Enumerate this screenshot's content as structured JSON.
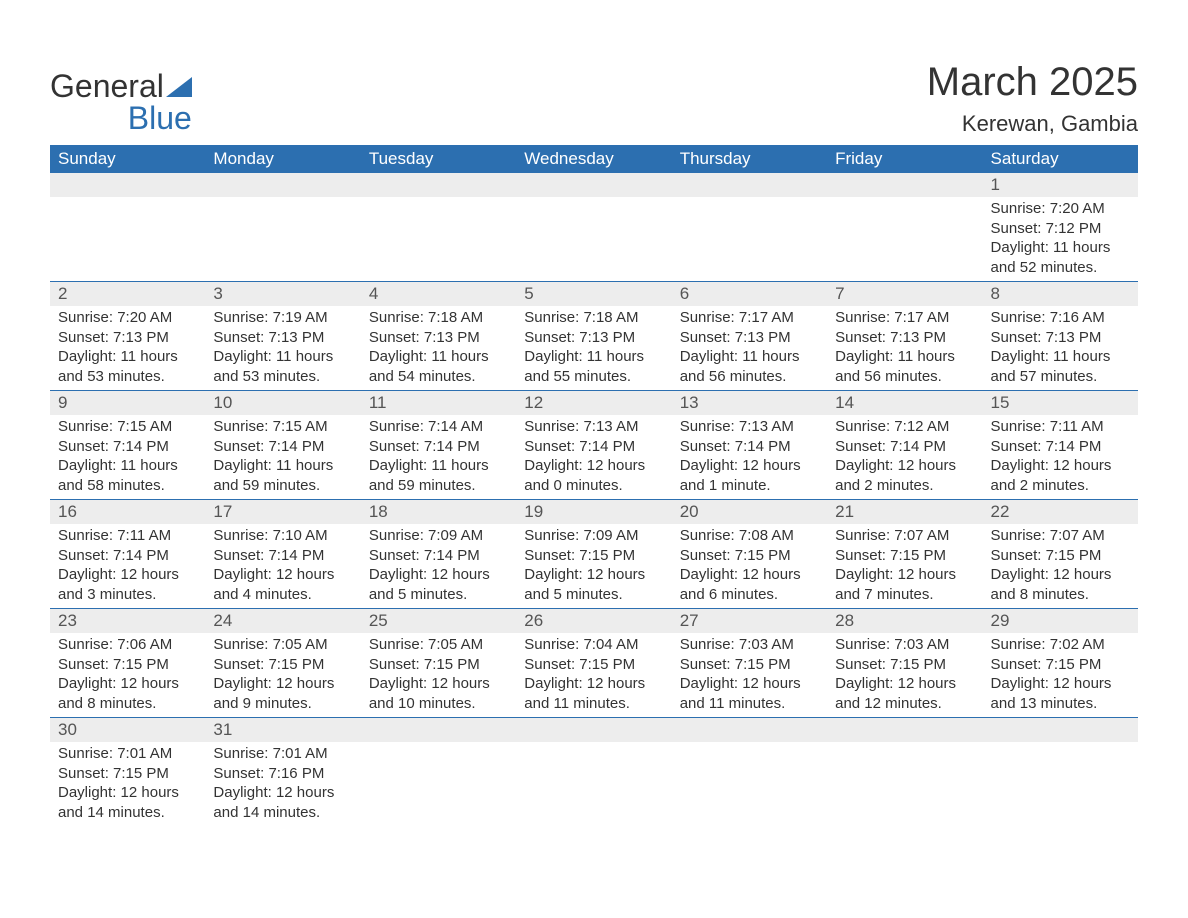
{
  "brand": {
    "line1": "General",
    "line2": "Blue"
  },
  "title": "March 2025",
  "location": "Kerewan, Gambia",
  "colors": {
    "header_bg": "#2c6fb0",
    "header_fg": "#ffffff",
    "daynum_bg": "#ededed",
    "text": "#333333",
    "border": "#2c6fb0"
  },
  "weekdays": [
    "Sunday",
    "Monday",
    "Tuesday",
    "Wednesday",
    "Thursday",
    "Friday",
    "Saturday"
  ],
  "weeks": [
    [
      null,
      null,
      null,
      null,
      null,
      null,
      {
        "n": "1",
        "sunrise": "Sunrise: 7:20 AM",
        "sunset": "Sunset: 7:12 PM",
        "day": "Daylight: 11 hours and 52 minutes."
      }
    ],
    [
      {
        "n": "2",
        "sunrise": "Sunrise: 7:20 AM",
        "sunset": "Sunset: 7:13 PM",
        "day": "Daylight: 11 hours and 53 minutes."
      },
      {
        "n": "3",
        "sunrise": "Sunrise: 7:19 AM",
        "sunset": "Sunset: 7:13 PM",
        "day": "Daylight: 11 hours and 53 minutes."
      },
      {
        "n": "4",
        "sunrise": "Sunrise: 7:18 AM",
        "sunset": "Sunset: 7:13 PM",
        "day": "Daylight: 11 hours and 54 minutes."
      },
      {
        "n": "5",
        "sunrise": "Sunrise: 7:18 AM",
        "sunset": "Sunset: 7:13 PM",
        "day": "Daylight: 11 hours and 55 minutes."
      },
      {
        "n": "6",
        "sunrise": "Sunrise: 7:17 AM",
        "sunset": "Sunset: 7:13 PM",
        "day": "Daylight: 11 hours and 56 minutes."
      },
      {
        "n": "7",
        "sunrise": "Sunrise: 7:17 AM",
        "sunset": "Sunset: 7:13 PM",
        "day": "Daylight: 11 hours and 56 minutes."
      },
      {
        "n": "8",
        "sunrise": "Sunrise: 7:16 AM",
        "sunset": "Sunset: 7:13 PM",
        "day": "Daylight: 11 hours and 57 minutes."
      }
    ],
    [
      {
        "n": "9",
        "sunrise": "Sunrise: 7:15 AM",
        "sunset": "Sunset: 7:14 PM",
        "day": "Daylight: 11 hours and 58 minutes."
      },
      {
        "n": "10",
        "sunrise": "Sunrise: 7:15 AM",
        "sunset": "Sunset: 7:14 PM",
        "day": "Daylight: 11 hours and 59 minutes."
      },
      {
        "n": "11",
        "sunrise": "Sunrise: 7:14 AM",
        "sunset": "Sunset: 7:14 PM",
        "day": "Daylight: 11 hours and 59 minutes."
      },
      {
        "n": "12",
        "sunrise": "Sunrise: 7:13 AM",
        "sunset": "Sunset: 7:14 PM",
        "day": "Daylight: 12 hours and 0 minutes."
      },
      {
        "n": "13",
        "sunrise": "Sunrise: 7:13 AM",
        "sunset": "Sunset: 7:14 PM",
        "day": "Daylight: 12 hours and 1 minute."
      },
      {
        "n": "14",
        "sunrise": "Sunrise: 7:12 AM",
        "sunset": "Sunset: 7:14 PM",
        "day": "Daylight: 12 hours and 2 minutes."
      },
      {
        "n": "15",
        "sunrise": "Sunrise: 7:11 AM",
        "sunset": "Sunset: 7:14 PM",
        "day": "Daylight: 12 hours and 2 minutes."
      }
    ],
    [
      {
        "n": "16",
        "sunrise": "Sunrise: 7:11 AM",
        "sunset": "Sunset: 7:14 PM",
        "day": "Daylight: 12 hours and 3 minutes."
      },
      {
        "n": "17",
        "sunrise": "Sunrise: 7:10 AM",
        "sunset": "Sunset: 7:14 PM",
        "day": "Daylight: 12 hours and 4 minutes."
      },
      {
        "n": "18",
        "sunrise": "Sunrise: 7:09 AM",
        "sunset": "Sunset: 7:14 PM",
        "day": "Daylight: 12 hours and 5 minutes."
      },
      {
        "n": "19",
        "sunrise": "Sunrise: 7:09 AM",
        "sunset": "Sunset: 7:15 PM",
        "day": "Daylight: 12 hours and 5 minutes."
      },
      {
        "n": "20",
        "sunrise": "Sunrise: 7:08 AM",
        "sunset": "Sunset: 7:15 PM",
        "day": "Daylight: 12 hours and 6 minutes."
      },
      {
        "n": "21",
        "sunrise": "Sunrise: 7:07 AM",
        "sunset": "Sunset: 7:15 PM",
        "day": "Daylight: 12 hours and 7 minutes."
      },
      {
        "n": "22",
        "sunrise": "Sunrise: 7:07 AM",
        "sunset": "Sunset: 7:15 PM",
        "day": "Daylight: 12 hours and 8 minutes."
      }
    ],
    [
      {
        "n": "23",
        "sunrise": "Sunrise: 7:06 AM",
        "sunset": "Sunset: 7:15 PM",
        "day": "Daylight: 12 hours and 8 minutes."
      },
      {
        "n": "24",
        "sunrise": "Sunrise: 7:05 AM",
        "sunset": "Sunset: 7:15 PM",
        "day": "Daylight: 12 hours and 9 minutes."
      },
      {
        "n": "25",
        "sunrise": "Sunrise: 7:05 AM",
        "sunset": "Sunset: 7:15 PM",
        "day": "Daylight: 12 hours and 10 minutes."
      },
      {
        "n": "26",
        "sunrise": "Sunrise: 7:04 AM",
        "sunset": "Sunset: 7:15 PM",
        "day": "Daylight: 12 hours and 11 minutes."
      },
      {
        "n": "27",
        "sunrise": "Sunrise: 7:03 AM",
        "sunset": "Sunset: 7:15 PM",
        "day": "Daylight: 12 hours and 11 minutes."
      },
      {
        "n": "28",
        "sunrise": "Sunrise: 7:03 AM",
        "sunset": "Sunset: 7:15 PM",
        "day": "Daylight: 12 hours and 12 minutes."
      },
      {
        "n": "29",
        "sunrise": "Sunrise: 7:02 AM",
        "sunset": "Sunset: 7:15 PM",
        "day": "Daylight: 12 hours and 13 minutes."
      }
    ],
    [
      {
        "n": "30",
        "sunrise": "Sunrise: 7:01 AM",
        "sunset": "Sunset: 7:15 PM",
        "day": "Daylight: 12 hours and 14 minutes."
      },
      {
        "n": "31",
        "sunrise": "Sunrise: 7:01 AM",
        "sunset": "Sunset: 7:16 PM",
        "day": "Daylight: 12 hours and 14 minutes."
      },
      null,
      null,
      null,
      null,
      null
    ]
  ]
}
